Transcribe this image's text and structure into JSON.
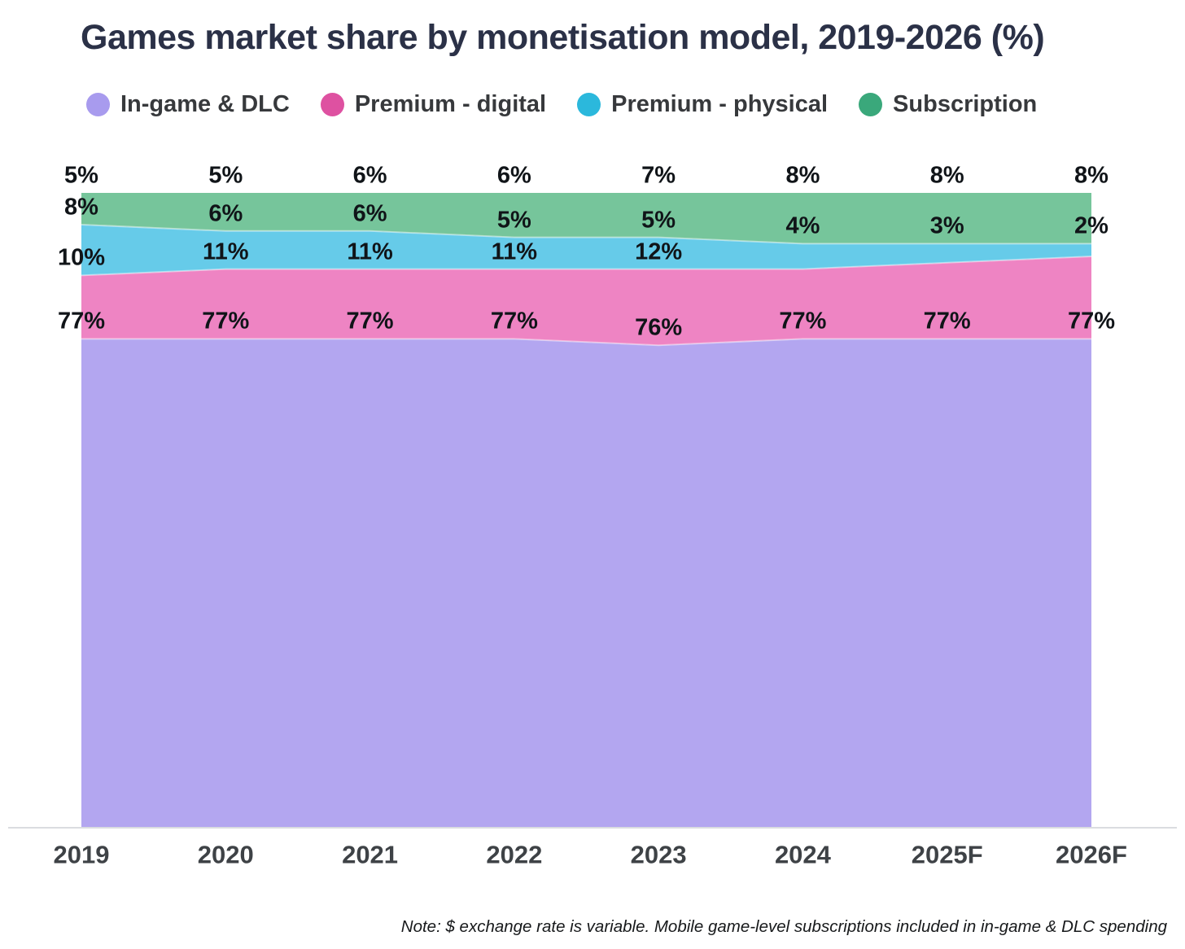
{
  "title": "Games market share by monetisation model, 2019-2026 (%)",
  "note": "Note: $ exchange rate is variable. Mobile game-level subscriptions included in in-game & DLC spending",
  "colors": {
    "background": "#ffffff",
    "title_text": "#2b3147",
    "data_label_text": "#101418",
    "axis_label_text": "#3e4246",
    "axis_line": "#dadce0",
    "band_separator": "rgba(255,255,255,0.45)"
  },
  "chart_data": {
    "type": "area",
    "stacked": true,
    "unit": "%",
    "title": "Games market share by monetisation model, 2019-2026 (%)",
    "categories": [
      "2019",
      "2020",
      "2021",
      "2022",
      "2023",
      "2024",
      "2025F",
      "2026F"
    ],
    "series": [
      {
        "id": "ingame-dlc",
        "name": "In-game & DLC",
        "area_color": "#b3a6f0",
        "legend_color": "#a89bee",
        "values": [
          77,
          77,
          77,
          77,
          76,
          77,
          77,
          77
        ],
        "labels": [
          "77%",
          "77%",
          "77%",
          "77%",
          "76%",
          "77%",
          "77%",
          "77%"
        ]
      },
      {
        "id": "premium-digital",
        "name": "Premium - digital",
        "area_color": "#ee84c3",
        "legend_color": "#de51a1",
        "values": [
          10,
          11,
          11,
          11,
          12,
          11,
          12,
          13
        ],
        "labels": [
          "10%",
          "11%",
          "11%",
          "11%",
          "12%",
          null,
          null,
          null
        ]
      },
      {
        "id": "premium-physical",
        "name": "Premium - physical",
        "area_color": "#66cbe9",
        "legend_color": "#2bb8dc",
        "values": [
          8,
          6,
          6,
          5,
          5,
          4,
          3,
          2
        ],
        "labels": [
          "8%",
          "6%",
          "6%",
          "5%",
          "5%",
          "4%",
          "3%",
          "2%"
        ]
      },
      {
        "id": "subscription",
        "name": "Subscription",
        "area_color": "#76c59b",
        "legend_color": "#3aa87b",
        "values": [
          5,
          5,
          6,
          6,
          7,
          8,
          8,
          8
        ],
        "labels": [
          "5%",
          "5%",
          "6%",
          "6%",
          "7%",
          "8%",
          "8%",
          "8%"
        ]
      }
    ],
    "ylim": [
      0,
      100
    ],
    "grid": false,
    "legend_position": "top",
    "value_labels_position": "above-band-top-edge"
  }
}
